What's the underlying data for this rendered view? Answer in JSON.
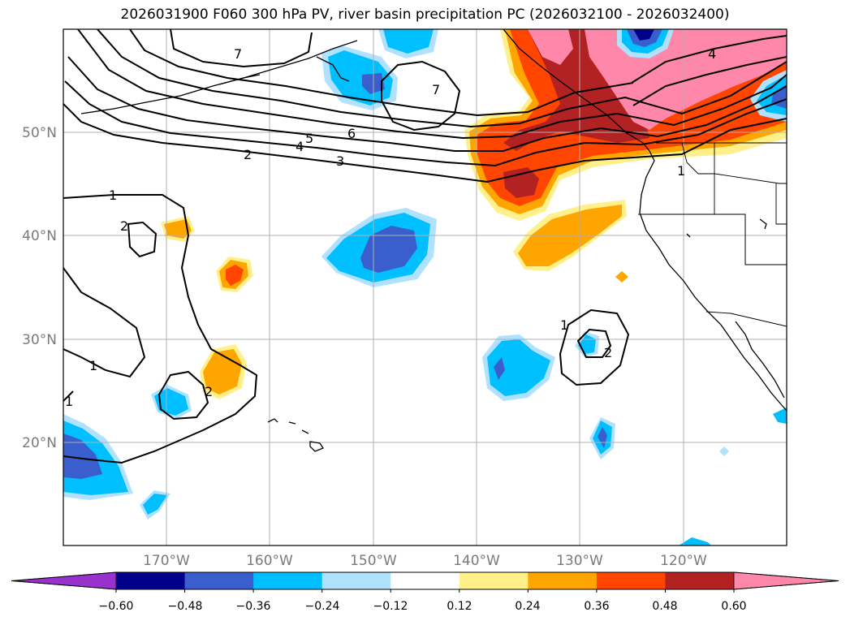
{
  "title": "2026031900 F060 300 hPa PV, river basin precipitation PC (2026032100 - 2026032400)",
  "colors": {
    "grid": "#b0b0b0",
    "axis_label": "#7a7a7a",
    "contour": "#000000",
    "coast": "#000000"
  },
  "latitude_labels": [
    "50°N",
    "40°N",
    "30°N",
    "20°N"
  ],
  "longitude_labels": [
    "170°W",
    "160°W",
    "150°W",
    "140°W",
    "130°W",
    "120°W"
  ],
  "contour_labels": [
    "7",
    "7",
    "6",
    "5",
    "4",
    "3",
    "2",
    "1",
    "2",
    "1",
    "1",
    "2",
    "1",
    "2",
    "1",
    "4"
  ],
  "colorbar": {
    "colors": [
      "#9932cc",
      "#00008b",
      "#3a5fcd",
      "#00bfff",
      "#b0e2ff",
      "#ffffff",
      "#fff08c",
      "#ffa500",
      "#ff4500",
      "#b22222",
      "#ff88aa"
    ],
    "tick_labels": [
      "−0.60",
      "−0.48",
      "−0.36",
      "−0.24",
      "−0.12",
      "0.12",
      "0.24",
      "0.36",
      "0.48",
      "0.60"
    ]
  }
}
